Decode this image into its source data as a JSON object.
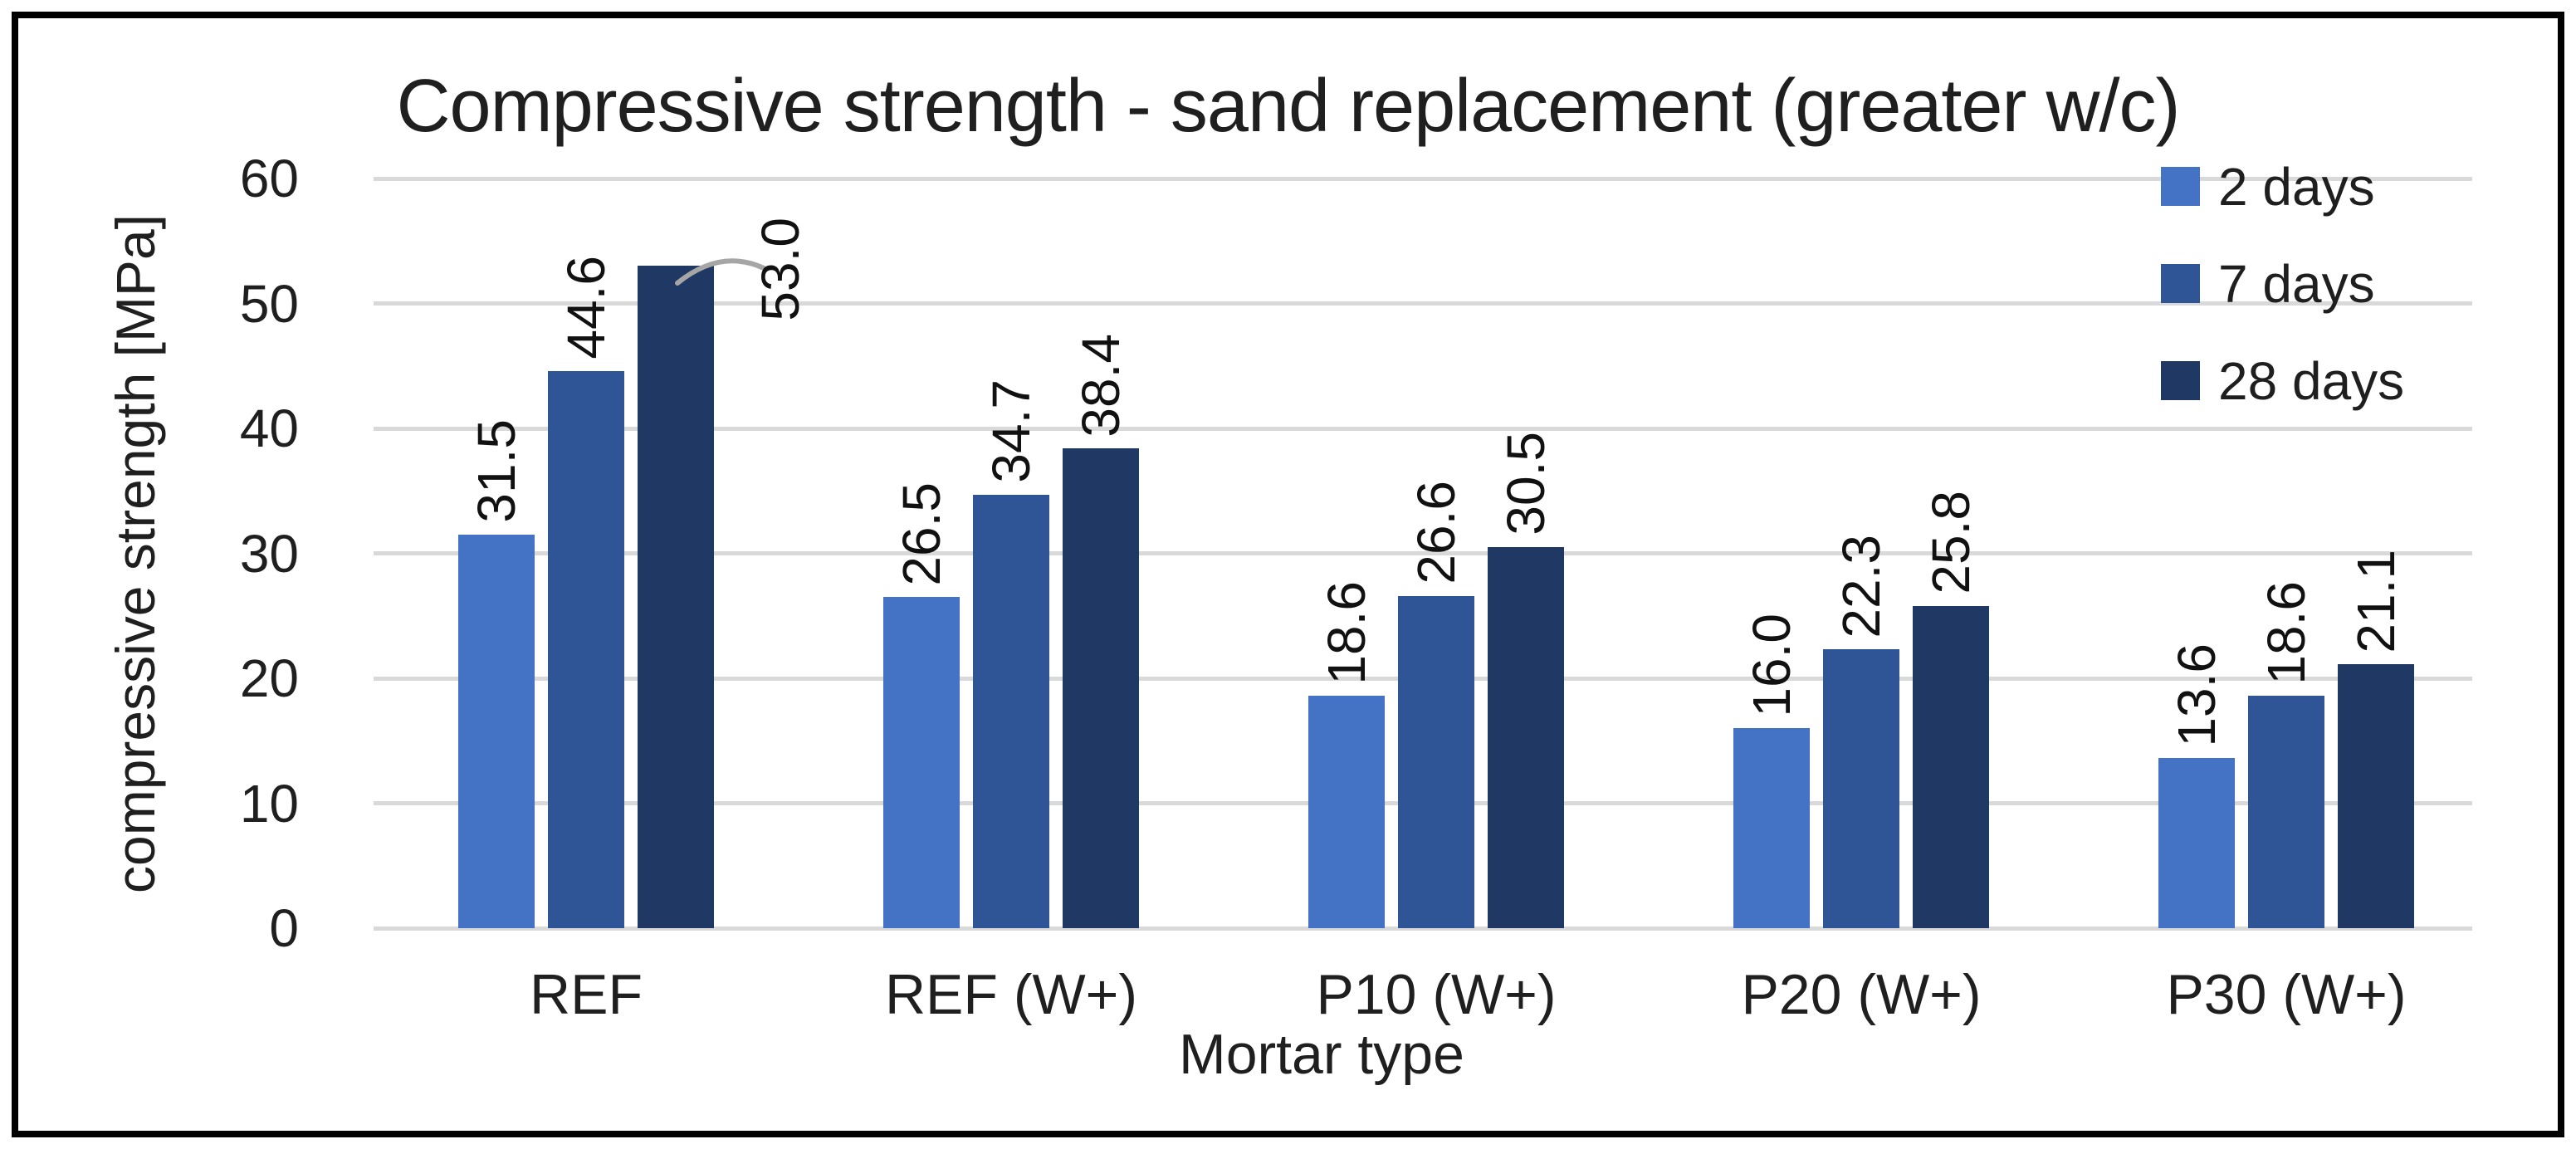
{
  "window": {
    "background": "#ffffff",
    "border_color": "#000000"
  },
  "chart_data": {
    "type": "bar",
    "title": "Compressive strength - sand replacement (greater w/c)",
    "xlabel": "Mortar type",
    "ylabel": "compressive strength [MPa]",
    "categories": [
      "REF",
      "REF (W+)",
      "P10 (W+)",
      "P20 (W+)",
      "P30 (W+)"
    ],
    "series": [
      {
        "name": "2 days",
        "color": "#4472C4",
        "values": [
          31.5,
          26.5,
          18.6,
          16.0,
          13.6
        ],
        "labels": [
          "31.5",
          "26.5",
          "18.6",
          "16.0",
          "13.6"
        ]
      },
      {
        "name": "7 days",
        "color": "#2F5597",
        "values": [
          44.6,
          34.7,
          26.6,
          22.3,
          18.6
        ],
        "labels": [
          "44.6",
          "34.7",
          "26.6",
          "22.3",
          "18.6"
        ]
      },
      {
        "name": "28 days",
        "color": "#1F3864",
        "values": [
          53.0,
          38.4,
          30.5,
          25.8,
          21.1
        ],
        "labels": [
          "53.0",
          "38.4",
          "30.5",
          "25.8",
          "21.1"
        ]
      }
    ],
    "ylim": [
      0,
      60
    ],
    "y_ticks": [
      0,
      10,
      20,
      30,
      40,
      50,
      60
    ],
    "grid": "horizontal",
    "gridline_color": "#D9D9D9",
    "legend_position": "top-right",
    "data_label_rotation": "vertical",
    "label_callout": {
      "series_index": 2,
      "category_index": 0,
      "leader_color": "#A6A6A6"
    }
  }
}
